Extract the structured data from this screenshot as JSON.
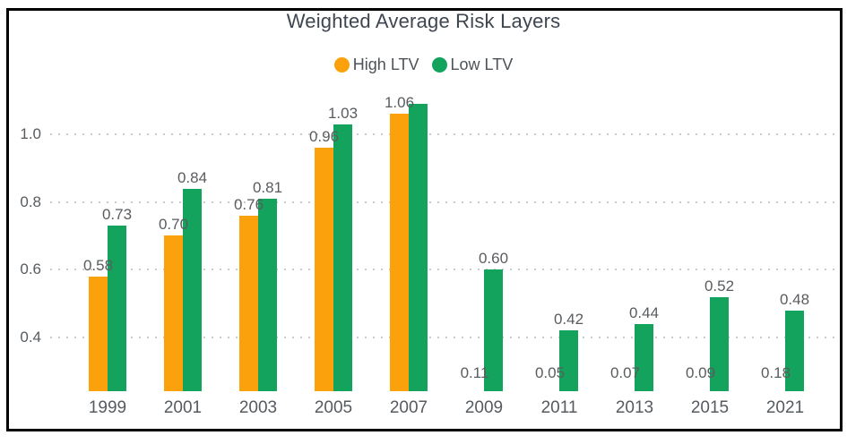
{
  "title": "Weighted Average Risk Layers",
  "legend": {
    "items": [
      {
        "label": "High LTV",
        "color": "#FBA10C"
      },
      {
        "label": "Low LTV",
        "color": "#13A35C"
      }
    ]
  },
  "chart_data": {
    "type": "bar",
    "title": "Weighted Average Risk Layers",
    "categories": [
      "1999",
      "2001",
      "2003",
      "2005",
      "2007",
      "2009",
      "2011",
      "2013",
      "2015",
      "2021"
    ],
    "series": [
      {
        "name": "High LTV",
        "color": "#FBA10C",
        "values": [
          0.58,
          0.7,
          0.76,
          0.96,
          1.06,
          0.11,
          0.05,
          0.07,
          0.09,
          0.18
        ],
        "labels": [
          "0.58",
          "0.70",
          "0.76",
          "0.96",
          "1.06",
          "0.11",
          "0.05",
          "0.07",
          "0.09",
          "0.18"
        ]
      },
      {
        "name": "Low LTV",
        "color": "#13A35C",
        "values": [
          0.73,
          0.84,
          0.81,
          1.03,
          1.09,
          0.6,
          0.42,
          0.44,
          0.52,
          0.48
        ],
        "labels": [
          "0.73",
          "0.84",
          "0.81",
          "1.03",
          "",
          "0.60",
          "0.42",
          "0.44",
          "0.52",
          "0.48"
        ]
      }
    ],
    "yticks": [
      {
        "label": "1.0",
        "value": 1.0
      },
      {
        "label": "0.8",
        "value": 0.8
      },
      {
        "label": "0.6",
        "value": 0.6
      },
      {
        "label": "0.4",
        "value": 0.4
      }
    ],
    "ylim": [
      0.241,
      1.13
    ],
    "grid": "dotted-horizontal",
    "legend_position": "top-center",
    "note_colors": {
      "grid": "#cbcbcb",
      "axis_text": "#565b60",
      "value_text": "#595c5f",
      "title_text": "#3f4650"
    }
  }
}
